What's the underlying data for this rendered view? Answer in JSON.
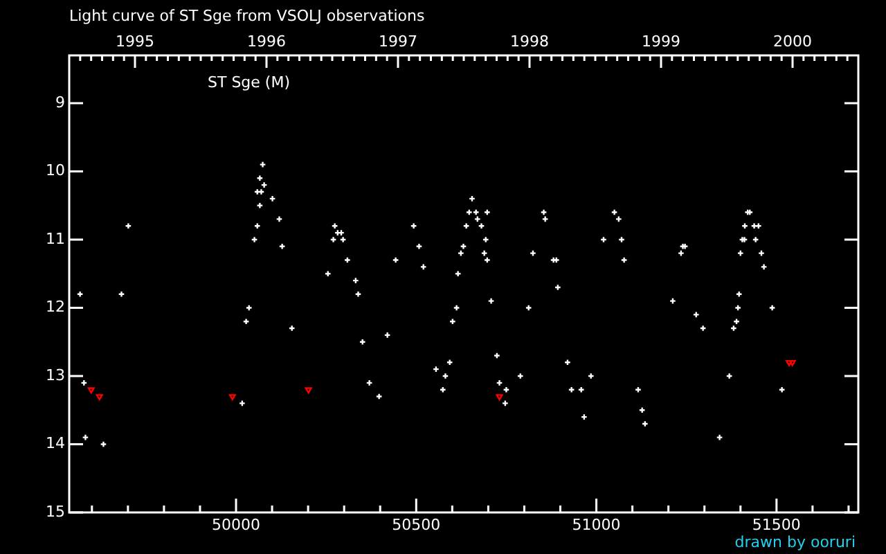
{
  "chart_data": {
    "type": "scatter",
    "title": "Light curve of ST Sge from VSOLJ observations",
    "subtitle": "ST Sge (M)",
    "annotations": [
      "drawn by ooruri"
    ],
    "xlim": [
      49537,
      51727
    ],
    "xticks": [
      {
        "value": 49600,
        "label": null
      },
      {
        "value": 49700,
        "label": null
      },
      {
        "value": 49800,
        "label": null
      },
      {
        "value": 49900,
        "label": null
      },
      50000,
      {
        "value": 50100,
        "label": null
      },
      {
        "value": 50200,
        "label": null
      },
      {
        "value": 50300,
        "label": null
      },
      {
        "value": 50400,
        "label": null
      },
      50500,
      {
        "value": 50600,
        "label": null
      },
      {
        "value": 50700,
        "label": null
      },
      {
        "value": 50800,
        "label": null
      },
      {
        "value": 50900,
        "label": null
      },
      51000,
      {
        "value": 51100,
        "label": null
      },
      {
        "value": 51200,
        "label": null
      },
      {
        "value": 51300,
        "label": null
      },
      {
        "value": 51400,
        "label": null
      },
      51500,
      {
        "value": 51600,
        "label": null
      },
      {
        "value": 51700,
        "label": null
      }
    ],
    "x2lim": [
      1994.5,
      2000.5
    ],
    "x2ticks": [
      {
        "value": 1994.5833,
        "label": null
      },
      {
        "value": 1994.6667,
        "label": null
      },
      {
        "value": 1994.75,
        "label": null
      },
      {
        "value": 1994.8333,
        "label": null
      },
      {
        "value": 1994.9167,
        "label": null
      },
      1995,
      {
        "value": 1995.0833,
        "label": null
      },
      {
        "value": 1995.1667,
        "label": null
      },
      {
        "value": 1995.25,
        "label": null
      },
      {
        "value": 1995.3333,
        "label": null
      },
      {
        "value": 1995.4167,
        "label": null
      },
      {
        "value": 1995.5,
        "label": null
      },
      {
        "value": 1995.5833,
        "label": null
      },
      {
        "value": 1995.6667,
        "label": null
      },
      {
        "value": 1995.75,
        "label": null
      },
      {
        "value": 1995.8333,
        "label": null
      },
      {
        "value": 1995.9167,
        "label": null
      },
      1996,
      {
        "value": 1996.0833,
        "label": null
      },
      {
        "value": 1996.1667,
        "label": null
      },
      {
        "value": 1996.25,
        "label": null
      },
      {
        "value": 1996.3333,
        "label": null
      },
      {
        "value": 1996.4167,
        "label": null
      },
      {
        "value": 1996.5,
        "label": null
      },
      {
        "value": 1996.5833,
        "label": null
      },
      {
        "value": 1996.6667,
        "label": null
      },
      {
        "value": 1996.75,
        "label": null
      },
      {
        "value": 1996.8333,
        "label": null
      },
      {
        "value": 1996.9167,
        "label": null
      },
      1997,
      {
        "value": 1997.0833,
        "label": null
      },
      {
        "value": 1997.1667,
        "label": null
      },
      {
        "value": 1997.25,
        "label": null
      },
      {
        "value": 1997.3333,
        "label": null
      },
      {
        "value": 1997.4167,
        "label": null
      },
      {
        "value": 1997.5,
        "label": null
      },
      {
        "value": 1997.5833,
        "label": null
      },
      {
        "value": 1997.6667,
        "label": null
      },
      {
        "value": 1997.75,
        "label": null
      },
      {
        "value": 1997.8333,
        "label": null
      },
      {
        "value": 1997.9167,
        "label": null
      },
      1998,
      {
        "value": 1998.0833,
        "label": null
      },
      {
        "value": 1998.1667,
        "label": null
      },
      {
        "value": 1998.25,
        "label": null
      },
      {
        "value": 1998.3333,
        "label": null
      },
      {
        "value": 1998.4167,
        "label": null
      },
      {
        "value": 1998.5,
        "label": null
      },
      {
        "value": 1998.5833,
        "label": null
      },
      {
        "value": 1998.6667,
        "label": null
      },
      {
        "value": 1998.75,
        "label": null
      },
      {
        "value": 1998.8333,
        "label": null
      },
      {
        "value": 1998.9167,
        "label": null
      },
      1999,
      {
        "value": 1999.0833,
        "label": null
      },
      {
        "value": 1999.1667,
        "label": null
      },
      {
        "value": 1999.25,
        "label": null
      },
      {
        "value": 1999.3333,
        "label": null
      },
      {
        "value": 1999.4167,
        "label": null
      },
      {
        "value": 1999.5,
        "label": null
      },
      {
        "value": 1999.5833,
        "label": null
      },
      {
        "value": 1999.6667,
        "label": null
      },
      {
        "value": 1999.75,
        "label": null
      },
      {
        "value": 1999.8333,
        "label": null
      },
      {
        "value": 1999.9167,
        "label": null
      },
      2000,
      {
        "value": 2000.0833,
        "label": null
      },
      {
        "value": 2000.1667,
        "label": null
      },
      {
        "value": 2000.25,
        "label": null
      },
      {
        "value": 2000.3333,
        "label": null
      },
      {
        "value": 2000.4167,
        "label": null
      }
    ],
    "ylim": [
      15,
      8.3
    ],
    "yticks": [
      9,
      10,
      11,
      12,
      13,
      14,
      15
    ],
    "grid": false,
    "series": [
      {
        "color": "#ffffff",
        "marker": "cross",
        "x": [
          49567,
          49578,
          49582,
          49632,
          49682,
          49701,
          50017,
          50028,
          50036,
          50051,
          50059,
          50059,
          50066,
          50066,
          50070,
          50074,
          50078,
          50101,
          50120,
          50128,
          50155,
          50255,
          50270,
          50274,
          50282,
          50292,
          50297,
          50309,
          50332,
          50339,
          50351,
          50370,
          50397,
          50420,
          50443,
          50493,
          50508,
          50520,
          50555,
          50574,
          50581,
          50593,
          50601,
          50612,
          50616,
          50624,
          50631,
          50639,
          50647,
          50655,
          50666,
          50670,
          50681,
          50689,
          50693,
          50697,
          50697,
          50708,
          50724,
          50731,
          50747,
          50750,
          50789,
          50812,
          50824,
          50854,
          50858,
          50881,
          50889,
          50893,
          50920,
          50931,
          50958,
          50966,
          50985,
          51020,
          51050,
          51062,
          51070,
          51077,
          51116,
          51127,
          51135,
          51212,
          51235,
          51240,
          51246,
          51277,
          51296,
          51342,
          51369,
          51381,
          51389,
          51393,
          51396,
          51400,
          51405,
          51411,
          51412,
          51420,
          51426,
          51438,
          51442,
          51450,
          51458,
          51465,
          51488,
          51515
        ],
        "values": [
          11.8,
          13.1,
          13.9,
          14.0,
          11.8,
          10.8,
          13.4,
          12.2,
          12.0,
          11.0,
          10.3,
          10.8,
          10.1,
          10.5,
          10.3,
          9.9,
          10.2,
          10.4,
          10.7,
          11.1,
          12.3,
          11.5,
          11.0,
          10.8,
          10.9,
          10.9,
          11.0,
          11.3,
          11.6,
          11.8,
          12.5,
          13.1,
          13.3,
          12.4,
          11.3,
          10.8,
          11.1,
          11.4,
          12.9,
          13.2,
          13.0,
          12.8,
          12.2,
          12.0,
          11.5,
          11.2,
          11.1,
          10.8,
          10.6,
          10.4,
          10.6,
          10.7,
          10.8,
          11.2,
          11.0,
          10.6,
          11.3,
          11.9,
          12.7,
          13.1,
          13.4,
          13.2,
          13.0,
          12.0,
          11.2,
          10.6,
          10.7,
          11.3,
          11.3,
          11.7,
          12.8,
          13.2,
          13.2,
          13.6,
          13.0,
          11.0,
          10.6,
          10.7,
          11.0,
          11.3,
          13.2,
          13.5,
          13.7,
          11.9,
          11.2,
          11.1,
          11.1,
          12.1,
          12.3,
          13.9,
          13.0,
          12.3,
          12.2,
          12.0,
          11.8,
          11.2,
          11.0,
          11.0,
          10.8,
          10.6,
          10.6,
          10.8,
          11.0,
          10.8,
          11.2,
          11.4,
          12.0,
          13.2
        ]
      },
      {
        "color": "#ff0000",
        "marker": "triangle",
        "x": [
          49598,
          49621,
          49990,
          50201,
          50731,
          51535,
          51544
        ],
        "values": [
          13.2,
          13.3,
          13.3,
          13.2,
          13.3,
          12.8,
          12.8
        ]
      }
    ]
  }
}
